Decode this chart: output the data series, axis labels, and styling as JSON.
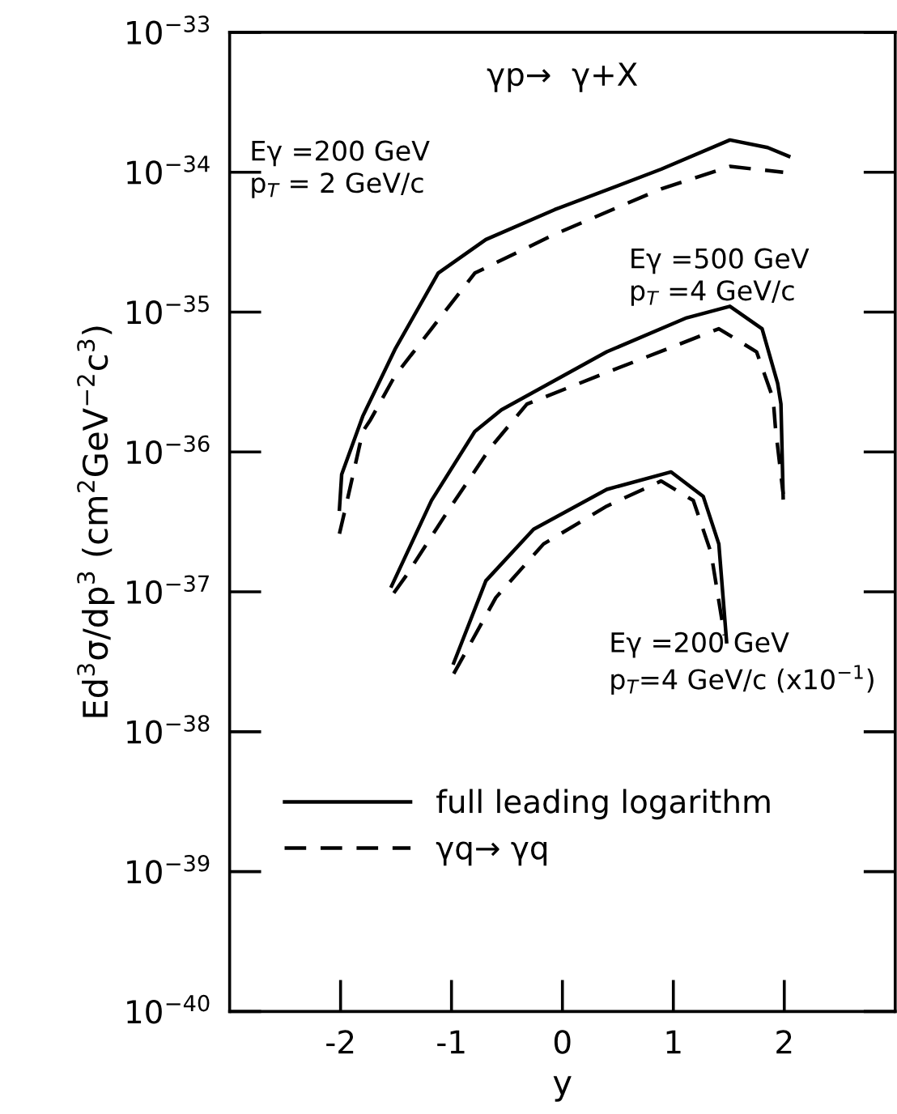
{
  "chart_data": {
    "type": "line",
    "title": "γp→  γ+X",
    "xlabel": "y",
    "ylabel": "Ed$^{3}$σ/dp$^{3}$ (cm$^{2}$GeV$^{−2}$c$^{3}$)",
    "log": "y",
    "xlim": [
      -3,
      3
    ],
    "xticks": [
      -2,
      -1,
      0,
      1,
      2
    ],
    "ylim": [
      1e-40,
      1e-33
    ],
    "yticks": [
      {
        "value": 1e-40,
        "label": "10$^{−40}$"
      },
      {
        "value": 1e-39,
        "label": "10$^{−39}$"
      },
      {
        "value": 1e-38,
        "label": "10$^{−38}$"
      },
      {
        "value": 1e-37,
        "label": "10$^{−37}$"
      },
      {
        "value": 1e-36,
        "label": "10$^{−36}$"
      },
      {
        "value": 1e-35,
        "label": "10$^{−35}$"
      },
      {
        "value": 1e-34,
        "label": "10$^{−34}$"
      },
      {
        "value": 1e-33,
        "label": "10$^{−33}$"
      }
    ],
    "grid": false,
    "legend": "bottom left",
    "marker": "none",
    "series": [
      {
        "name": "full leading logarithm",
        "color": "#000000",
        "line_style": "solid",
        "x": [
          -2.01,
          -1.99,
          -1.8,
          -1.51,
          -1.12,
          -0.69,
          -0.07,
          0.89,
          1.51,
          1.85,
          2.04
        ],
        "values": [
          3.9e-37,
          6.9e-37,
          1.8e-36,
          5.4e-36,
          1.9e-35,
          3.3e-35,
          5.4e-35,
          1.05e-34,
          1.7e-34,
          1.5e-34,
          1.3e-34
        ]
      },
      {
        "name": "γq→ γq",
        "color": "#000000",
        "line_style": "dashed",
        "x": [
          -2.01,
          -1.94,
          -1.8,
          -1.73,
          -1.51,
          -1.18,
          -0.79,
          -0.07,
          0.89,
          1.51,
          1.99
        ],
        "values": [
          2.6e-37,
          4.5e-37,
          1.4e-36,
          1.7e-36,
          3.5e-36,
          7.6e-36,
          1.9e-35,
          3.6e-35,
          7.6e-35,
          1.1e-34,
          1e-34
        ]
      },
      {
        "color": "#000000",
        "line_style": "solid",
        "x": [
          -1.54,
          -1.18,
          -0.79,
          -0.55,
          0.4,
          1.12,
          1.51,
          1.8,
          1.94,
          1.97,
          1.99
        ],
        "values": [
          1.1e-37,
          4.5e-37,
          1.4e-36,
          2e-36,
          5.2e-36,
          9.1e-36,
          1.1e-35,
          7.6e-36,
          3.1e-36,
          2.2e-36,
          4.7e-37
        ]
      },
      {
        "color": "#000000",
        "line_style": "dashed",
        "x": [
          -1.52,
          -1.41,
          -1.04,
          -0.65,
          -0.32,
          0.4,
          1.41,
          1.75,
          1.9,
          1.92,
          1.99
        ],
        "values": [
          9.8e-38,
          1.3e-37,
          3.7e-37,
          1.07e-36,
          2.2e-36,
          3.7e-36,
          7.6e-36,
          5.2e-36,
          2.4e-36,
          1.5e-36,
          5e-37
        ]
      },
      {
        "color": "#000000",
        "line_style": "solid",
        "x": [
          -0.98,
          -0.69,
          -0.26,
          0.4,
          0.98,
          1.27,
          1.41,
          1.48
        ],
        "values": [
          3.1e-38,
          1.2e-37,
          2.8e-37,
          5.4e-37,
          7.2e-37,
          4.8e-37,
          2.2e-37,
          4.4e-38
        ]
      },
      {
        "color": "#000000",
        "line_style": "dashed",
        "x": [
          -0.98,
          -0.6,
          -0.17,
          0.4,
          0.89,
          1.18,
          1.34,
          1.46
        ],
        "values": [
          2.6e-38,
          9.1e-38,
          2.2e-37,
          4.1e-37,
          6.2e-37,
          4.5e-37,
          1.9e-37,
          4.9e-38
        ]
      }
    ],
    "annotations": [
      "Eγ =200 GeV\np$_{T}$ = 2 GeV/c",
      "Eγ =500 GeV\np$_{T}$ =4 GeV/c",
      "Eγ =200 GeV\np$_{T}$=4 GeV/c (x10$^{−1}$)"
    ]
  }
}
